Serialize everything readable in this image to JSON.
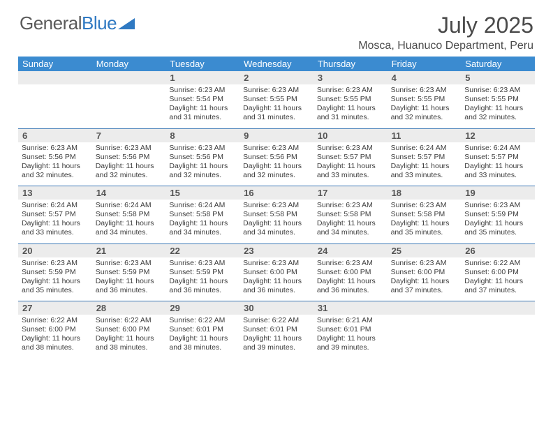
{
  "brand": {
    "text_gray": "General",
    "text_blue": "Blue"
  },
  "title": "July 2025",
  "location": "Mosca, Huanuco Department, Peru",
  "colors": {
    "header_bar": "#3b8bd0",
    "row_separator": "#3b78b5",
    "daynum_bg": "#ececec",
    "text": "#404040",
    "brand_blue": "#2f79c2"
  },
  "weekdays": [
    "Sunday",
    "Monday",
    "Tuesday",
    "Wednesday",
    "Thursday",
    "Friday",
    "Saturday"
  ],
  "weeks": [
    [
      null,
      null,
      {
        "n": "1",
        "sr": "6:23 AM",
        "ss": "5:54 PM",
        "dl": "11 hours and 31 minutes."
      },
      {
        "n": "2",
        "sr": "6:23 AM",
        "ss": "5:55 PM",
        "dl": "11 hours and 31 minutes."
      },
      {
        "n": "3",
        "sr": "6:23 AM",
        "ss": "5:55 PM",
        "dl": "11 hours and 31 minutes."
      },
      {
        "n": "4",
        "sr": "6:23 AM",
        "ss": "5:55 PM",
        "dl": "11 hours and 32 minutes."
      },
      {
        "n": "5",
        "sr": "6:23 AM",
        "ss": "5:55 PM",
        "dl": "11 hours and 32 minutes."
      }
    ],
    [
      {
        "n": "6",
        "sr": "6:23 AM",
        "ss": "5:56 PM",
        "dl": "11 hours and 32 minutes."
      },
      {
        "n": "7",
        "sr": "6:23 AM",
        "ss": "5:56 PM",
        "dl": "11 hours and 32 minutes."
      },
      {
        "n": "8",
        "sr": "6:23 AM",
        "ss": "5:56 PM",
        "dl": "11 hours and 32 minutes."
      },
      {
        "n": "9",
        "sr": "6:23 AM",
        "ss": "5:56 PM",
        "dl": "11 hours and 32 minutes."
      },
      {
        "n": "10",
        "sr": "6:23 AM",
        "ss": "5:57 PM",
        "dl": "11 hours and 33 minutes."
      },
      {
        "n": "11",
        "sr": "6:24 AM",
        "ss": "5:57 PM",
        "dl": "11 hours and 33 minutes."
      },
      {
        "n": "12",
        "sr": "6:24 AM",
        "ss": "5:57 PM",
        "dl": "11 hours and 33 minutes."
      }
    ],
    [
      {
        "n": "13",
        "sr": "6:24 AM",
        "ss": "5:57 PM",
        "dl": "11 hours and 33 minutes."
      },
      {
        "n": "14",
        "sr": "6:24 AM",
        "ss": "5:58 PM",
        "dl": "11 hours and 34 minutes."
      },
      {
        "n": "15",
        "sr": "6:24 AM",
        "ss": "5:58 PM",
        "dl": "11 hours and 34 minutes."
      },
      {
        "n": "16",
        "sr": "6:23 AM",
        "ss": "5:58 PM",
        "dl": "11 hours and 34 minutes."
      },
      {
        "n": "17",
        "sr": "6:23 AM",
        "ss": "5:58 PM",
        "dl": "11 hours and 34 minutes."
      },
      {
        "n": "18",
        "sr": "6:23 AM",
        "ss": "5:58 PM",
        "dl": "11 hours and 35 minutes."
      },
      {
        "n": "19",
        "sr": "6:23 AM",
        "ss": "5:59 PM",
        "dl": "11 hours and 35 minutes."
      }
    ],
    [
      {
        "n": "20",
        "sr": "6:23 AM",
        "ss": "5:59 PM",
        "dl": "11 hours and 35 minutes."
      },
      {
        "n": "21",
        "sr": "6:23 AM",
        "ss": "5:59 PM",
        "dl": "11 hours and 36 minutes."
      },
      {
        "n": "22",
        "sr": "6:23 AM",
        "ss": "5:59 PM",
        "dl": "11 hours and 36 minutes."
      },
      {
        "n": "23",
        "sr": "6:23 AM",
        "ss": "6:00 PM",
        "dl": "11 hours and 36 minutes."
      },
      {
        "n": "24",
        "sr": "6:23 AM",
        "ss": "6:00 PM",
        "dl": "11 hours and 36 minutes."
      },
      {
        "n": "25",
        "sr": "6:23 AM",
        "ss": "6:00 PM",
        "dl": "11 hours and 37 minutes."
      },
      {
        "n": "26",
        "sr": "6:22 AM",
        "ss": "6:00 PM",
        "dl": "11 hours and 37 minutes."
      }
    ],
    [
      {
        "n": "27",
        "sr": "6:22 AM",
        "ss": "6:00 PM",
        "dl": "11 hours and 38 minutes."
      },
      {
        "n": "28",
        "sr": "6:22 AM",
        "ss": "6:00 PM",
        "dl": "11 hours and 38 minutes."
      },
      {
        "n": "29",
        "sr": "6:22 AM",
        "ss": "6:01 PM",
        "dl": "11 hours and 38 minutes."
      },
      {
        "n": "30",
        "sr": "6:22 AM",
        "ss": "6:01 PM",
        "dl": "11 hours and 39 minutes."
      },
      {
        "n": "31",
        "sr": "6:21 AM",
        "ss": "6:01 PM",
        "dl": "11 hours and 39 minutes."
      },
      null,
      null
    ]
  ],
  "labels": {
    "sunrise": "Sunrise:",
    "sunset": "Sunset:",
    "daylight": "Daylight:"
  }
}
